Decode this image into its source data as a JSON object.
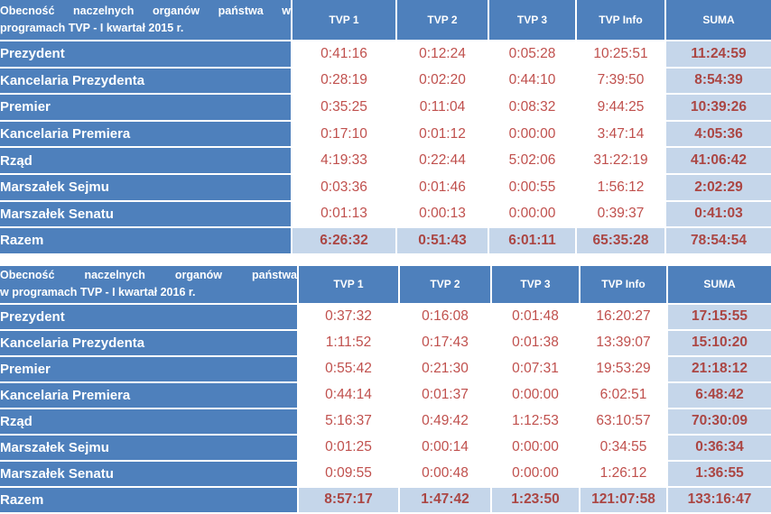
{
  "colors": {
    "header_blue": "#4e80bc",
    "total_light_blue": "#c5d6ea",
    "value_red": "#c0504d",
    "total_red": "#ab4643",
    "grid_white": "#ffffff",
    "header_text": "#ffffff"
  },
  "tables": [
    {
      "title_line1": "Obecność naczelnych organów państwa w",
      "title_line2": "programach TVP - I kwartał 2015 r.",
      "columns": [
        "TVP 1",
        "TVP 2",
        "TVP 3",
        "TVP Info",
        "SUMA"
      ],
      "rows": [
        {
          "label": "Prezydent",
          "values": [
            "0:41:16",
            "0:12:24",
            "0:05:28",
            "10:25:51",
            "11:24:59"
          ]
        },
        {
          "label": "Kancelaria Prezydenta",
          "values": [
            "0:28:19",
            "0:02:20",
            "0:44:10",
            "7:39:50",
            "8:54:39"
          ]
        },
        {
          "label": "Premier",
          "values": [
            "0:35:25",
            "0:11:04",
            "0:08:32",
            "9:44:25",
            "10:39:26"
          ]
        },
        {
          "label": "Kancelaria Premiera",
          "values": [
            "0:17:10",
            "0:01:12",
            "0:00:00",
            "3:47:14",
            "4:05:36"
          ]
        },
        {
          "label": "Rząd",
          "values": [
            "4:19:33",
            "0:22:44",
            "5:02:06",
            "31:22:19",
            "41:06:42"
          ]
        },
        {
          "label": "Marszałek Sejmu",
          "values": [
            "0:03:36",
            "0:01:46",
            "0:00:55",
            "1:56:12",
            "2:02:29"
          ]
        },
        {
          "label": "Marszałek Senatu",
          "values": [
            "0:01:13",
            "0:00:13",
            "0:00:00",
            "0:39:37",
            "0:41:03"
          ]
        },
        {
          "label": "Razem",
          "values": [
            "6:26:32",
            "0:51:43",
            "6:01:11",
            "65:35:28",
            "78:54:54"
          ],
          "is_total": true
        }
      ]
    },
    {
      "title_line1": "Obecność naczelnych organów państwa",
      "title_line2": "w programach TVP - I kwartał 2016 r.",
      "columns": [
        "TVP 1",
        "TVP 2",
        "TVP 3",
        "TVP Info",
        "SUMA"
      ],
      "rows": [
        {
          "label": "Prezydent",
          "values": [
            "0:37:32",
            "0:16:08",
            "0:01:48",
            "16:20:27",
            "17:15:55"
          ]
        },
        {
          "label": "Kancelaria Prezydenta",
          "values": [
            "1:11:52",
            "0:17:43",
            "0:01:38",
            "13:39:07",
            "15:10:20"
          ]
        },
        {
          "label": "Premier",
          "values": [
            "0:55:42",
            "0:21:30",
            "0:07:31",
            "19:53:29",
            "21:18:12"
          ]
        },
        {
          "label": "Kancelaria Premiera",
          "values": [
            "0:44:14",
            "0:01:37",
            "0:00:00",
            "6:02:51",
            "6:48:42"
          ]
        },
        {
          "label": "Rząd",
          "values": [
            "5:16:37",
            "0:49:42",
            "1:12:53",
            "63:10:57",
            "70:30:09"
          ]
        },
        {
          "label": "Marszałek Sejmu",
          "values": [
            "0:01:25",
            "0:00:14",
            "0:00:00",
            "0:34:55",
            "0:36:34"
          ]
        },
        {
          "label": "Marszałek Senatu",
          "values": [
            "0:09:55",
            "0:00:48",
            "0:00:00",
            "1:26:12",
            "1:36:55"
          ]
        },
        {
          "label": "Razem",
          "values": [
            "8:57:17",
            "1:47:42",
            "1:23:50",
            "121:07:58",
            "133:16:47"
          ],
          "is_total": true
        }
      ]
    }
  ],
  "chart_data": [
    {
      "type": "table",
      "title": "Obecność naczelnych organów państwa w programach TVP - I kwartał 2015 r.",
      "columns": [
        "",
        "TVP 1",
        "TVP 2",
        "TVP 3",
        "TVP Info",
        "SUMA"
      ],
      "rows": [
        [
          "Prezydent",
          "0:41:16",
          "0:12:24",
          "0:05:28",
          "10:25:51",
          "11:24:59"
        ],
        [
          "Kancelaria Prezydenta",
          "0:28:19",
          "0:02:20",
          "0:44:10",
          "7:39:50",
          "8:54:39"
        ],
        [
          "Premier",
          "0:35:25",
          "0:11:04",
          "0:08:32",
          "9:44:25",
          "10:39:26"
        ],
        [
          "Kancelaria Premiera",
          "0:17:10",
          "0:01:12",
          "0:00:00",
          "3:47:14",
          "4:05:36"
        ],
        [
          "Rząd",
          "4:19:33",
          "0:22:44",
          "5:02:06",
          "31:22:19",
          "41:06:42"
        ],
        [
          "Marszałek Sejmu",
          "0:03:36",
          "0:01:46",
          "0:00:55",
          "1:56:12",
          "2:02:29"
        ],
        [
          "Marszałek Senatu",
          "0:01:13",
          "0:00:13",
          "0:00:00",
          "0:39:37",
          "0:41:03"
        ],
        [
          "Razem",
          "6:26:32",
          "0:51:43",
          "6:01:11",
          "65:35:28",
          "78:54:54"
        ]
      ]
    },
    {
      "type": "table",
      "title": "Obecność naczelnych organów państwa w programach TVP - I kwartał 2016 r.",
      "columns": [
        "",
        "TVP 1",
        "TVP 2",
        "TVP 3",
        "TVP Info",
        "SUMA"
      ],
      "rows": [
        [
          "Prezydent",
          "0:37:32",
          "0:16:08",
          "0:01:48",
          "16:20:27",
          "17:15:55"
        ],
        [
          "Kancelaria Prezydenta",
          "1:11:52",
          "0:17:43",
          "0:01:38",
          "13:39:07",
          "15:10:20"
        ],
        [
          "Premier",
          "0:55:42",
          "0:21:30",
          "0:07:31",
          "19:53:29",
          "21:18:12"
        ],
        [
          "Kancelaria Premiera",
          "0:44:14",
          "0:01:37",
          "0:00:00",
          "6:02:51",
          "6:48:42"
        ],
        [
          "Rząd",
          "5:16:37",
          "0:49:42",
          "1:12:53",
          "63:10:57",
          "70:30:09"
        ],
        [
          "Marszałek Sejmu",
          "0:01:25",
          "0:00:14",
          "0:00:00",
          "0:34:55",
          "0:36:34"
        ],
        [
          "Marszałek Senatu",
          "0:09:55",
          "0:00:48",
          "0:00:00",
          "1:26:12",
          "1:36:55"
        ],
        [
          "Razem",
          "8:57:17",
          "1:47:42",
          "1:23:50",
          "121:07:58",
          "133:16:47"
        ]
      ]
    }
  ]
}
